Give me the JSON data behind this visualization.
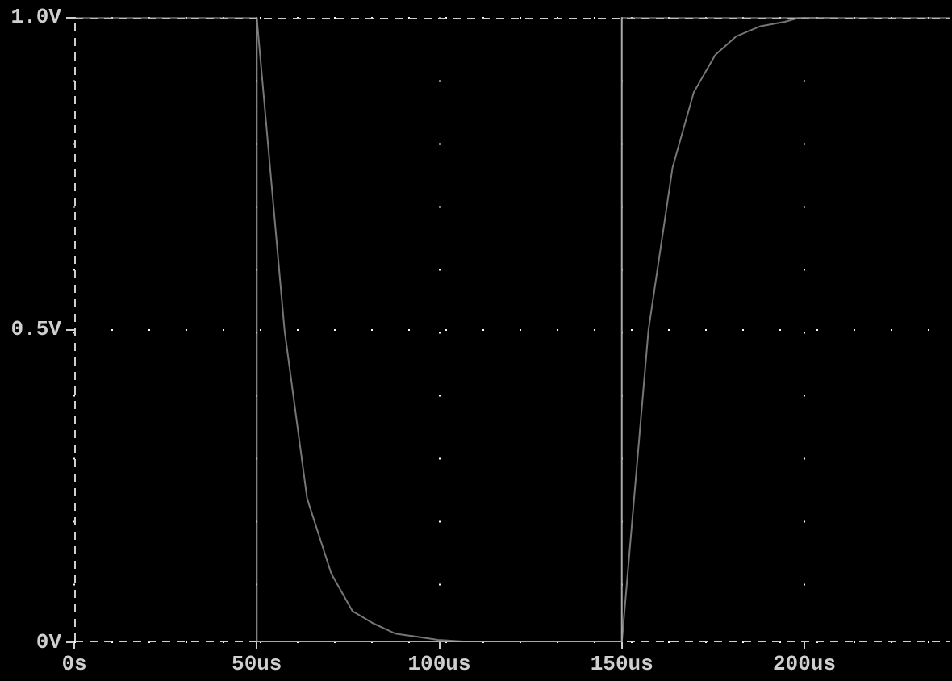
{
  "chart_data": {
    "type": "line",
    "series": [
      {
        "color": "#a8a8a8",
        "x": [
          0,
          50,
          50,
          150,
          150,
          240
        ],
        "values": [
          1,
          1,
          0,
          0,
          1,
          1
        ]
      },
      {
        "color": "#767676",
        "x": [
          50,
          57.6,
          63.8,
          70.4,
          76.2,
          82,
          87.9,
          93.7,
          99.6,
          110
        ],
        "values": [
          1,
          0.5,
          0.23,
          0.11,
          0.05,
          0.03,
          0.014,
          0.009,
          0.004,
          0
        ]
      },
      {
        "color": "#767676",
        "x": [
          150,
          157.3,
          163.9,
          169.7,
          175.6,
          181.4,
          188,
          194.6,
          199,
          209
        ],
        "values": [
          0,
          0.5,
          0.76,
          0.88,
          0.94,
          0.97,
          0.986,
          0.993,
          1,
          1
        ]
      }
    ],
    "xlim": [
      0,
      240
    ],
    "ylim": [
      0,
      1
    ],
    "xticks": [
      {
        "value": 0,
        "label": "0s"
      },
      {
        "value": 50,
        "label": "50us"
      },
      {
        "value": 100,
        "label": "100us"
      },
      {
        "value": 150,
        "label": "150us"
      },
      {
        "value": 200,
        "label": "200us"
      }
    ],
    "yticks": [
      {
        "value": 0,
        "label": "0V"
      },
      {
        "value": 0.5,
        "label": "0.5V"
      },
      {
        "value": 1,
        "label": "1.0V"
      }
    ],
    "grid": true,
    "legend": false,
    "marker": "none"
  }
}
